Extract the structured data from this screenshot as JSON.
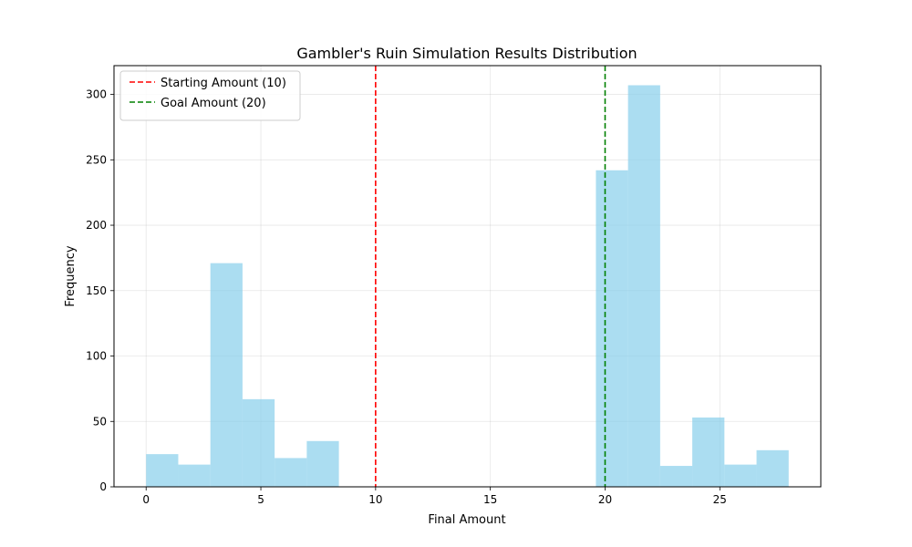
{
  "chart_data": {
    "type": "bar",
    "title": "Gambler's Ruin Simulation Results Distribution",
    "xlabel": "Final Amount",
    "ylabel": "Frequency",
    "xlim": [
      -1.4,
      29.4
    ],
    "ylim": [
      0,
      322
    ],
    "xticks": [
      0,
      5,
      10,
      15,
      20,
      25
    ],
    "yticks": [
      0,
      50,
      100,
      150,
      200,
      250,
      300
    ],
    "grid": true,
    "bar_color": "#87ceeb",
    "bars": [
      {
        "x0": 0.0,
        "x1": 1.4,
        "value": 25
      },
      {
        "x0": 1.4,
        "x1": 2.8,
        "value": 17
      },
      {
        "x0": 2.8,
        "x1": 4.2,
        "value": 171
      },
      {
        "x0": 4.2,
        "x1": 5.6,
        "value": 67
      },
      {
        "x0": 5.6,
        "x1": 7.0,
        "value": 22
      },
      {
        "x0": 7.0,
        "x1": 8.4,
        "value": 35
      },
      {
        "x0": 19.6,
        "x1": 21.0,
        "value": 242
      },
      {
        "x0": 21.0,
        "x1": 22.4,
        "value": 307
      },
      {
        "x0": 22.4,
        "x1": 23.8,
        "value": 16
      },
      {
        "x0": 23.8,
        "x1": 25.2,
        "value": 53
      },
      {
        "x0": 25.2,
        "x1": 26.6,
        "value": 17
      },
      {
        "x0": 26.6,
        "x1": 28.0,
        "value": 28
      }
    ],
    "reference_lines": [
      {
        "x": 10,
        "label": "Starting Amount (10)",
        "color": "#ff0000"
      },
      {
        "x": 20,
        "label": "Goal Amount (20)",
        "color": "#008000"
      }
    ],
    "legend_position": "top-left"
  }
}
